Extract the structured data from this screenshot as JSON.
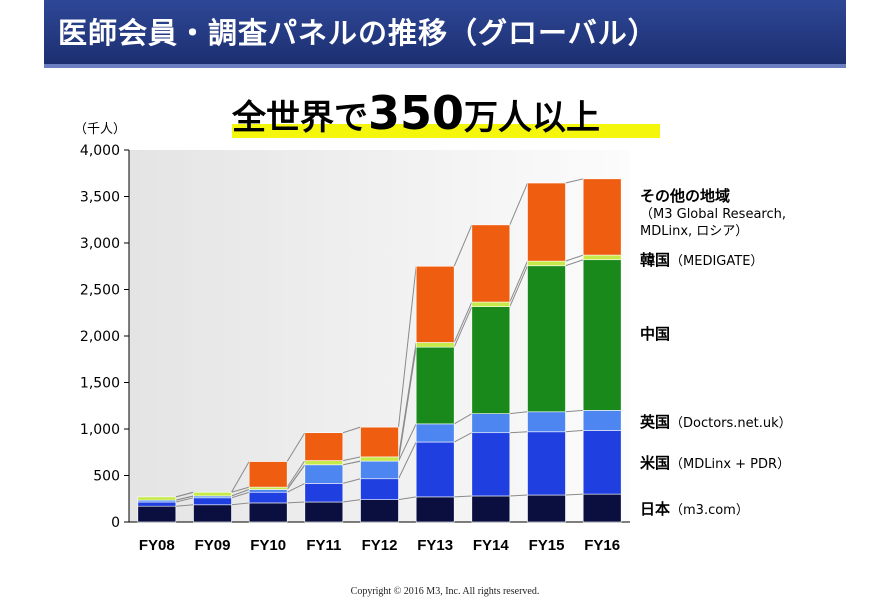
{
  "header": {
    "title": "医師会員・調査パネルの推移（グローバル）"
  },
  "headline": {
    "prefix": "全世界で",
    "number": "350",
    "suffix": "万人以上"
  },
  "copyright": "Copyright © 2016  M3, Inc.  All rights reserved.",
  "chart_data": {
    "type": "bar",
    "stacked": true,
    "unit_label": "（千人）",
    "categories": [
      "FY08",
      "FY09",
      "FY10",
      "FY11",
      "FY12",
      "FY13",
      "FY14",
      "FY15",
      "FY16"
    ],
    "ylim": [
      0,
      4000
    ],
    "yticks": [
      "0",
      "500",
      "1,000",
      "1,500",
      "2,000",
      "2,500",
      "3,000",
      "3,500",
      "4,000"
    ],
    "ytick_values": [
      0,
      500,
      1000,
      1500,
      2000,
      2500,
      3000,
      3500,
      4000
    ],
    "series": [
      {
        "name": "日本",
        "label_main": "日本",
        "label_sub": "（m3.com）",
        "color": "#0a0f40",
        "values": [
          170,
          185,
          205,
          215,
          240,
          270,
          280,
          290,
          300
        ]
      },
      {
        "name": "米国",
        "label_main": "米国",
        "label_sub": "（MDLinx + PDR）",
        "color": "#1f3fe0",
        "values": [
          45,
          75,
          115,
          200,
          225,
          590,
          680,
          680,
          685
        ]
      },
      {
        "name": "英国",
        "label_main": "英国",
        "label_sub": "（Doctors.net.uk）",
        "color": "#4d86f0",
        "values": [
          20,
          20,
          30,
          200,
          190,
          195,
          205,
          215,
          215
        ]
      },
      {
        "name": "中国",
        "label_main": "中国",
        "label_sub": "",
        "color": "#19891c",
        "values": [
          0,
          0,
          0,
          0,
          0,
          825,
          1150,
          1570,
          1620
        ]
      },
      {
        "name": "韓国",
        "label_main": "韓国",
        "label_sub": "（MEDIGATE）",
        "color": "#c6ea4a",
        "values": [
          35,
          40,
          25,
          45,
          45,
          50,
          50,
          50,
          50
        ]
      },
      {
        "name": "その他の地域",
        "label_main": "その他の地域",
        "label_sub": "（M3 Global Research, MDLinx, ロシア）",
        "color": "#ef5e10",
        "values": [
          0,
          0,
          275,
          300,
          320,
          820,
          830,
          840,
          820
        ]
      }
    ],
    "grid": false,
    "legend": "right"
  }
}
